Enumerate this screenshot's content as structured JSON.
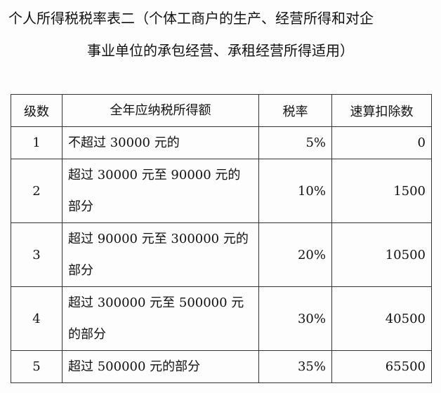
{
  "title": {
    "line1": "个人所得税税率表二（个体工商户的生产、经营所得和对企",
    "line2": "事业单位的承包经营、承租经营所得适用）"
  },
  "table": {
    "headers": [
      "级数",
      "全年应纳税所得额",
      "税率",
      "速算扣除数"
    ],
    "rows": [
      {
        "level": "1",
        "range": "不超过 30000 元的",
        "rate": "5%",
        "deduction": "0"
      },
      {
        "level": "2",
        "range": "超过 30000 元至 90000 元的部分",
        "rate": "10%",
        "deduction": "1500"
      },
      {
        "level": "3",
        "range": "超过 90000 元至 300000 元的部分",
        "rate": "20%",
        "deduction": "10500"
      },
      {
        "level": "4",
        "range": "超过 300000 元至 500000 元的部分",
        "rate": "30%",
        "deduction": "40500"
      },
      {
        "level": "5",
        "range": "超过 500000 元的部分",
        "rate": "35%",
        "deduction": "65500"
      }
    ]
  }
}
